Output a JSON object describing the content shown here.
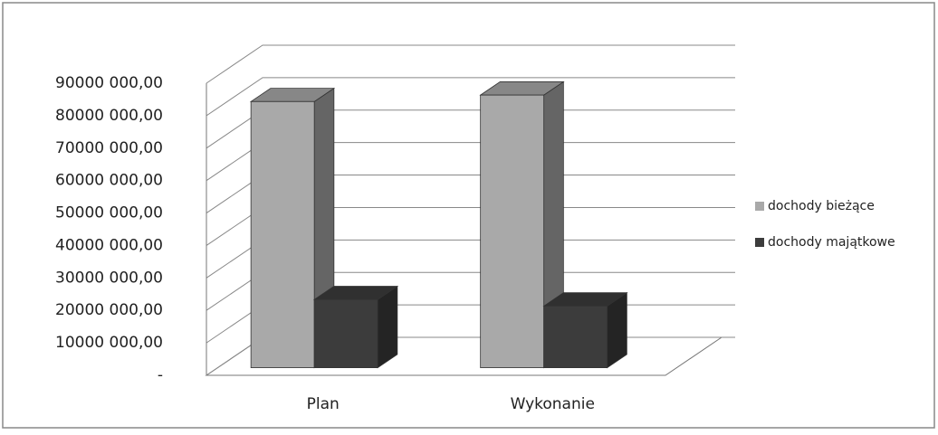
{
  "chart_data": {
    "type": "bar",
    "categories": [
      "Plan",
      "Wykonanie"
    ],
    "series": [
      {
        "name": "dochody bieżące",
        "color": "#a9a9a9",
        "values": [
          82000000,
          84000000
        ]
      },
      {
        "name": "dochody majątkowe",
        "color": "#3c3c3c",
        "values": [
          21000000,
          19000000
        ]
      }
    ],
    "ylim": [
      0,
      90000000
    ],
    "yticks": [
      {
        "value": 0,
        "label": "-"
      },
      {
        "value": 10000000,
        "label": "10000 000,00"
      },
      {
        "value": 20000000,
        "label": "20000 000,00"
      },
      {
        "value": 30000000,
        "label": "30000 000,00"
      },
      {
        "value": 40000000,
        "label": "40000 000,00"
      },
      {
        "value": 50000000,
        "label": "50000 000,00"
      },
      {
        "value": 60000000,
        "label": "60000 000,00"
      },
      {
        "value": 70000000,
        "label": "70000 000,00"
      },
      {
        "value": 80000000,
        "label": "80000 000,00"
      },
      {
        "value": 90000000,
        "label": "90000 000,00"
      }
    ],
    "grid": true,
    "legend": "right"
  }
}
